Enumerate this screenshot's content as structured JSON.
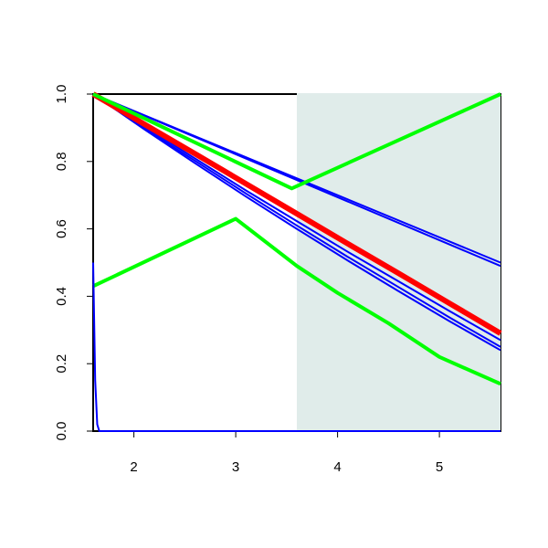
{
  "chart_data": {
    "type": "line",
    "xlim": [
      1.6,
      5.6
    ],
    "ylim": [
      0,
      1
    ],
    "xticks": [
      2,
      3,
      4,
      5
    ],
    "yticks": [
      {
        "value": 0,
        "label": "0.0"
      },
      0.2,
      0.4,
      0.6,
      0.8,
      {
        "value": 1,
        "label": "1.0"
      }
    ],
    "shaded_region": {
      "x": [
        3.6,
        5.6
      ],
      "color": "#e0ecea"
    },
    "series": [
      {
        "color": "#0000ff",
        "width": 2,
        "x": [
          1.6,
          5.6
        ],
        "values": [
          1,
          0.5
        ]
      },
      {
        "color": "#0000ff",
        "width": 2,
        "x": [
          1.6,
          5.6
        ],
        "values": [
          1,
          0.49
        ]
      },
      {
        "color": "#0000ff",
        "width": 2,
        "x": [
          1.6,
          2.1,
          2.6,
          3.1,
          3.6,
          4.1,
          4.6,
          5.1,
          5.6
        ],
        "values": [
          1,
          0.904,
          0.809,
          0.714,
          0.623,
          0.532,
          0.444,
          0.356,
          0.27
        ]
      },
      {
        "color": "#0000ff",
        "width": 2,
        "x": [
          1.6,
          2.1,
          2.6,
          3.1,
          3.6,
          4.1,
          4.6,
          5.1,
          5.6
        ],
        "values": [
          1,
          0.899,
          0.802,
          0.705,
          0.61,
          0.517,
          0.427,
          0.337,
          0.25
        ]
      },
      {
        "color": "#0000ff",
        "width": 2,
        "x": [
          1.6,
          2.1,
          2.6,
          3.1,
          3.6,
          4.1,
          4.6,
          5.1,
          5.6
        ],
        "values": [
          1,
          0.896,
          0.795,
          0.696,
          0.6,
          0.506,
          0.415,
          0.326,
          0.24
        ]
      },
      {
        "color": "#ff0000",
        "width": 6,
        "x": [
          1.6,
          2.1,
          2.6,
          3.1,
          3.6,
          4.1,
          4.6,
          5.1,
          5.6
        ],
        "values": [
          1,
          0.911,
          0.823,
          0.734,
          0.645,
          0.556,
          0.468,
          0.379,
          0.29
        ]
      },
      {
        "color": "#00ff00",
        "width": 4,
        "x": [
          1.6,
          3.55,
          5.6
        ],
        "values": [
          1,
          0.72,
          1
        ]
      },
      {
        "color": "#00ff00",
        "width": 4,
        "x": [
          1.6,
          3.0,
          3.6,
          4.0,
          4.5,
          5.0,
          5.6
        ],
        "values": [
          0.43,
          0.63,
          0.49,
          0.41,
          0.32,
          0.22,
          0.14
        ]
      },
      {
        "color": "#0000ff",
        "width": 2,
        "x": [
          1.6,
          1.62,
          1.64,
          1.66,
          5.6
        ],
        "values": [
          0.5,
          0.15,
          0.02,
          0,
          0
        ]
      }
    ]
  }
}
